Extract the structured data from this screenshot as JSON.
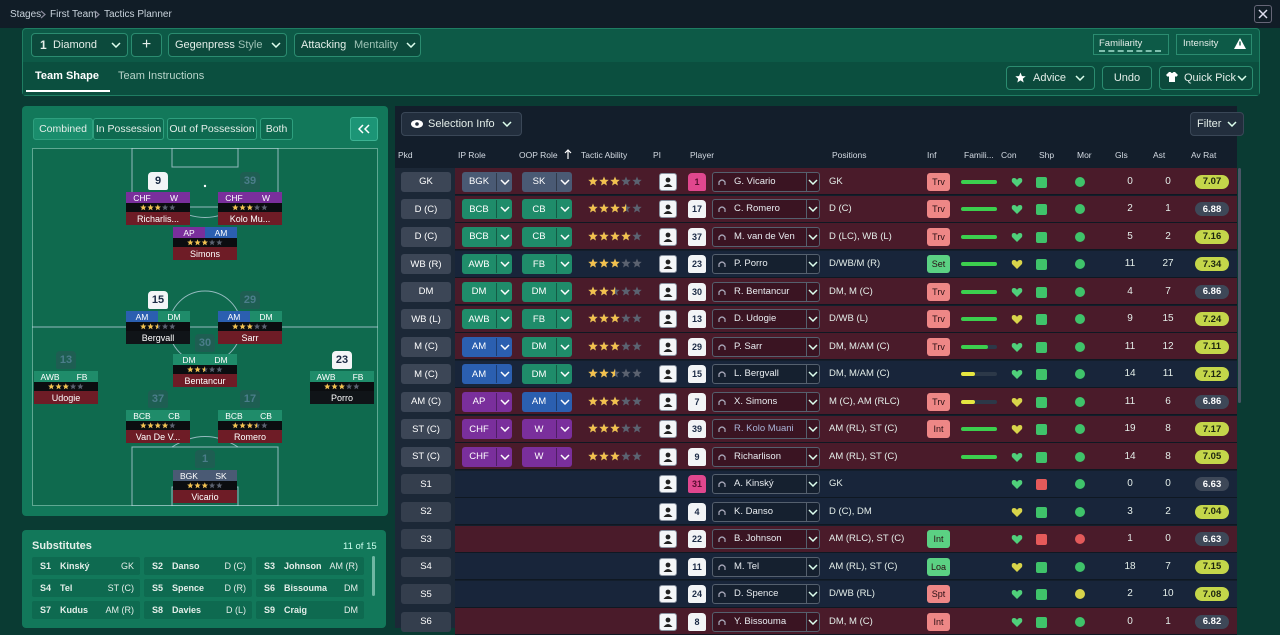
{
  "breadcrumb": [
    "Stages",
    "First Team",
    "Tactics Planner"
  ],
  "toolbar": {
    "formation_number": "1",
    "formation": "Diamond",
    "add": "+",
    "style_value": "Gegenpress",
    "style_label": "Style",
    "mentality_value": "Attacking",
    "mentality_label": "Mentality",
    "familiarity": "Familiarity",
    "intensity": "Intensity"
  },
  "tabs": [
    "Team Shape",
    "Team Instructions"
  ],
  "actions": {
    "advice": "Advice",
    "undo": "Undo",
    "quick_pick": "Quick Pick"
  },
  "view_tabs": [
    "Combined",
    "In Possession",
    "Out of Possession",
    "Both"
  ],
  "pitch": [
    {
      "number": "9",
      "roles": [
        "CHF",
        "W"
      ],
      "stars": 3,
      "name": "Richarlis..."
    },
    {
      "number": "39",
      "roles": [
        "CHF",
        "W"
      ],
      "stars": 3,
      "name": "Kolo Mu..."
    },
    {
      "roles": [
        "AP",
        "AM"
      ],
      "stars": 3,
      "name": "Simons"
    },
    {
      "number": "15",
      "roles": [
        "AM",
        "DM"
      ],
      "stars": 2.5,
      "name": "Bergvall"
    },
    {
      "number": "29",
      "roles": [
        "AM",
        "DM"
      ],
      "stars": 3,
      "name": "Sarr"
    },
    {
      "number": "30",
      "roles": [
        "DM",
        "DM"
      ],
      "stars": 2.5,
      "name": "Bentancur"
    },
    {
      "number": "13",
      "roles": [
        "AWB",
        "FB"
      ],
      "stars": 3,
      "name": "Udogie"
    },
    {
      "number": "23",
      "roles": [
        "AWB",
        "FB"
      ],
      "stars": 3,
      "name": "Porro"
    },
    {
      "number": "37",
      "roles": [
        "BCB",
        "CB"
      ],
      "stars": 4,
      "name": "Van De V..."
    },
    {
      "number": "17",
      "roles": [
        "BCB",
        "CB"
      ],
      "stars": 3.5,
      "name": "Romero"
    },
    {
      "number": "1",
      "roles": [
        "BGK",
        "SK"
      ],
      "stars": 3,
      "name": "Vicario"
    }
  ],
  "substitutes": {
    "title": "Substitutes",
    "count": "11 of 15",
    "items": [
      {
        "slot": "S1",
        "name": "Kinský",
        "position": "GK"
      },
      {
        "slot": "S2",
        "name": "Danso",
        "position": "D (C)"
      },
      {
        "slot": "S3",
        "name": "Johnson",
        "position": "AM (R)"
      },
      {
        "slot": "S4",
        "name": "Tel",
        "position": "ST (C)"
      },
      {
        "slot": "S5",
        "name": "Spence",
        "position": "D (R)"
      },
      {
        "slot": "S6",
        "name": "Bissouma",
        "position": "DM"
      },
      {
        "slot": "S7",
        "name": "Kudus",
        "position": "AM (R)"
      },
      {
        "slot": "S8",
        "name": "Davies",
        "position": "D (L)"
      },
      {
        "slot": "S9",
        "name": "Craig",
        "position": "DM"
      }
    ]
  },
  "table": {
    "selection_info": "Selection Info",
    "filter": "Filter",
    "headers": [
      "Pkd",
      "IP Role",
      "OOP Role",
      "Tactic Ability",
      "PI",
      "Player",
      "Positions",
      "Inf",
      "Famili...",
      "Con",
      "Shp",
      "Mor",
      "Gls",
      "Ast",
      "Av Rat"
    ],
    "rows": [
      {
        "pkd": "GK",
        "ip_role": "BGK",
        "oop_role": "SK",
        "tactic_ability": 3,
        "shirt": "1",
        "player": "G. Vicario",
        "positions": "GK",
        "inf": "Trv",
        "familiarity": 100,
        "gls": 0,
        "ast": 0,
        "av_rat": 7.07
      },
      {
        "pkd": "D (C)",
        "ip_role": "BCB",
        "oop_role": "CB",
        "tactic_ability": 3.5,
        "shirt": "17",
        "player": "C. Romero",
        "positions": "D (C)",
        "inf": "Trv",
        "familiarity": 100,
        "gls": 2,
        "ast": 1,
        "av_rat": 6.88
      },
      {
        "pkd": "D (C)",
        "ip_role": "BCB",
        "oop_role": "CB",
        "tactic_ability": 4,
        "shirt": "37",
        "player": "M. van de Ven",
        "positions": "D (LC), WB (L)",
        "inf": "Trv",
        "familiarity": 100,
        "gls": 5,
        "ast": 2,
        "av_rat": 7.16
      },
      {
        "pkd": "WB (R)",
        "ip_role": "AWB",
        "oop_role": "FB",
        "tactic_ability": 3,
        "shirt": "23",
        "player": "P. Porro",
        "positions": "D/WB/M (R)",
        "inf": "Set",
        "familiarity": 100,
        "gls": 11,
        "ast": 27,
        "av_rat": 7.34
      },
      {
        "pkd": "DM",
        "ip_role": "DM",
        "oop_role": "DM",
        "tactic_ability": 2.5,
        "shirt": "30",
        "player": "R. Bentancur",
        "positions": "DM, M (C)",
        "inf": "Trv",
        "familiarity": 100,
        "gls": 4,
        "ast": 7,
        "av_rat": 6.86
      },
      {
        "pkd": "WB (L)",
        "ip_role": "AWB",
        "oop_role": "FB",
        "tactic_ability": 3,
        "shirt": "13",
        "player": "D. Udogie",
        "positions": "D/WB (L)",
        "inf": "Trv",
        "familiarity": 100,
        "gls": 9,
        "ast": 15,
        "av_rat": 7.24
      },
      {
        "pkd": "M (C)",
        "ip_role": "AM",
        "oop_role": "DM",
        "tactic_ability": 3,
        "shirt": "29",
        "player": "P. Sarr",
        "positions": "DM, M/AM (C)",
        "inf": "Trv",
        "familiarity": 75,
        "gls": 11,
        "ast": 12,
        "av_rat": 7.11
      },
      {
        "pkd": "M (C)",
        "ip_role": "AM",
        "oop_role": "DM",
        "tactic_ability": 2.5,
        "shirt": "15",
        "player": "L. Bergvall",
        "positions": "DM, M/AM (C)",
        "familiarity": 40,
        "gls": 14,
        "ast": 11,
        "av_rat": 7.12
      },
      {
        "pkd": "AM (C)",
        "ip_role": "AP",
        "oop_role": "AM",
        "tactic_ability": 3,
        "shirt": "7",
        "player": "X. Simons",
        "positions": "M (C), AM (RLC)",
        "inf": "Trv",
        "familiarity": 40,
        "gls": 11,
        "ast": 6,
        "av_rat": 6.86
      },
      {
        "pkd": "ST (C)",
        "ip_role": "CHF",
        "oop_role": "W",
        "tactic_ability": 3,
        "shirt": "39",
        "player": "R. Kolo Muani",
        "positions": "AM (RL), ST (C)",
        "inf": "Int",
        "familiarity": 100,
        "gls": 19,
        "ast": 8,
        "av_rat": 7.17
      },
      {
        "pkd": "ST (C)",
        "ip_role": "CHF",
        "oop_role": "W",
        "tactic_ability": 3,
        "shirt": "9",
        "player": "Richarlison",
        "positions": "AM (RL), ST (C)",
        "familiarity": 100,
        "gls": 14,
        "ast": 8,
        "av_rat": 7.05
      },
      {
        "pkd": "S1",
        "shirt": "31",
        "player": "A. Kinský",
        "positions": "GK",
        "gls": 0,
        "ast": 0,
        "av_rat": 6.63
      },
      {
        "pkd": "S2",
        "shirt": "4",
        "player": "K. Danso",
        "positions": "D (C), DM",
        "gls": 3,
        "ast": 2,
        "av_rat": 7.04
      },
      {
        "pkd": "S3",
        "shirt": "22",
        "player": "B. Johnson",
        "positions": "AM (RLC), ST (C)",
        "inf": "Int",
        "gls": 1,
        "ast": 0,
        "av_rat": 6.63
      },
      {
        "pkd": "S4",
        "shirt": "11",
        "player": "M. Tel",
        "positions": "AM (RL), ST (C)",
        "inf": "Loa",
        "gls": 18,
        "ast": 7,
        "av_rat": 7.15
      },
      {
        "pkd": "S5",
        "shirt": "24",
        "player": "D. Spence",
        "positions": "D/WB (RL)",
        "inf": "Spt",
        "gls": 2,
        "ast": 10,
        "av_rat": 7.08
      },
      {
        "pkd": "S6",
        "shirt": "8",
        "player": "Y. Bissouma",
        "positions": "DM, M (C)",
        "inf": "Int",
        "gls": 0,
        "ast": 1,
        "av_rat": 6.82
      }
    ]
  }
}
